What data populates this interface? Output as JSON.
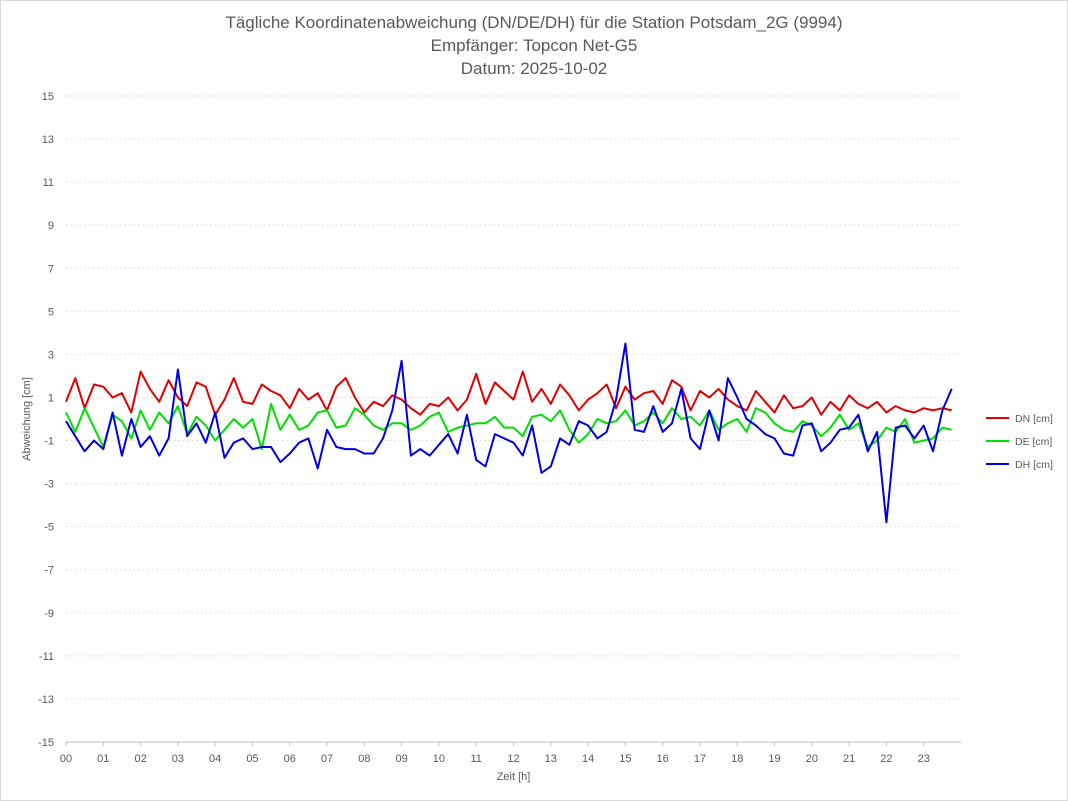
{
  "chart_data": {
    "type": "line",
    "title_lines": [
      "Tägliche Koordinatenabweichung (DN/DE/DH) für die Station Potsdam_2G (9994)",
      "Empfänger: Topcon Net-G5",
      "Datum: 2025-10-02"
    ],
    "xlabel": "Zeit [h]",
    "ylabel": "Abweichung [cm]",
    "xlim": [
      0,
      24
    ],
    "ylim": [
      -15,
      15
    ],
    "x_ticks": [
      0,
      1,
      2,
      3,
      4,
      5,
      6,
      7,
      8,
      9,
      10,
      11,
      12,
      13,
      14,
      15,
      16,
      17,
      18,
      19,
      20,
      21,
      22,
      23
    ],
    "x_tick_labels": [
      "00",
      "01",
      "02",
      "03",
      "04",
      "05",
      "06",
      "07",
      "08",
      "09",
      "10",
      "11",
      "12",
      "13",
      "14",
      "15",
      "16",
      "17",
      "18",
      "19",
      "20",
      "21",
      "22",
      "23"
    ],
    "y_ticks": [
      15,
      13,
      11,
      9,
      7,
      5,
      3,
      1,
      -1,
      -3,
      -5,
      -7,
      -9,
      -11,
      -13,
      -15
    ],
    "y_tick_labels": [
      "15",
      "13",
      "11",
      "9",
      "7",
      "5",
      "3",
      "1",
      "-1",
      "-3",
      "-5",
      "-7",
      "-9",
      "-11",
      "-13",
      "-15"
    ],
    "grid": "horizontal dotted",
    "legend_position": "right",
    "x_step_hours": 0.25,
    "series": [
      {
        "name": "DN [cm]",
        "color": "#e00000",
        "values": [
          0.8,
          1.9,
          0.5,
          1.6,
          1.5,
          1.0,
          1.2,
          0.3,
          2.2,
          1.4,
          0.8,
          1.8,
          1.0,
          0.6,
          1.7,
          1.5,
          0.2,
          0.9,
          1.9,
          0.8,
          0.7,
          1.6,
          1.3,
          1.1,
          0.5,
          1.4,
          0.9,
          1.2,
          0.4,
          1.5,
          1.9,
          1.0,
          0.3,
          0.8,
          0.6,
          1.1,
          0.9,
          0.5,
          0.2,
          0.7,
          0.6,
          1.0,
          0.4,
          0.9,
          2.1,
          0.7,
          1.7,
          1.3,
          0.9,
          2.2,
          0.8,
          1.4,
          0.7,
          1.6,
          1.1,
          0.4,
          0.9,
          1.2,
          1.6,
          0.5,
          1.5,
          0.9,
          1.2,
          1.3,
          0.7,
          1.8,
          1.5,
          0.4,
          1.3,
          1.0,
          1.4,
          0.9,
          0.6,
          0.4,
          1.3,
          0.8,
          0.3,
          1.1,
          0.5,
          0.6,
          1.0,
          0.2,
          0.8,
          0.4,
          1.1,
          0.7,
          0.5,
          0.8,
          0.3,
          0.6,
          0.4,
          0.3,
          0.5,
          0.4,
          0.5,
          0.4
        ],
        "x_step_hours": 0.25
      },
      {
        "name": "DE [cm]",
        "color": "#00e000",
        "values": [
          0.3,
          -0.6,
          0.5,
          -0.4,
          -1.3,
          0.2,
          -0.1,
          -0.9,
          0.4,
          -0.5,
          0.3,
          -0.2,
          0.6,
          -0.7,
          0.1,
          -0.3,
          -1.0,
          -0.5,
          0.0,
          -0.4,
          0.0,
          -1.4,
          0.7,
          -0.5,
          0.2,
          -0.5,
          -0.3,
          0.3,
          0.4,
          -0.4,
          -0.3,
          0.5,
          0.2,
          -0.3,
          -0.5,
          -0.2,
          -0.2,
          -0.5,
          -0.3,
          0.1,
          0.3,
          -0.6,
          -0.4,
          -0.3,
          -0.2,
          -0.2,
          0.1,
          -0.4,
          -0.4,
          -0.8,
          0.1,
          0.2,
          -0.1,
          0.4,
          -0.5,
          -1.1,
          -0.7,
          0.0,
          -0.2,
          -0.1,
          0.4,
          -0.3,
          -0.1,
          0.3,
          -0.2,
          0.5,
          0.0,
          0.1,
          -0.3,
          0.4,
          -0.5,
          -0.2,
          0.0,
          -0.6,
          0.5,
          0.3,
          -0.2,
          -0.5,
          -0.6,
          -0.1,
          -0.3,
          -0.8,
          -0.4,
          0.2,
          -0.5,
          -0.2,
          -1.3,
          -1.0,
          -0.4,
          -0.6,
          0.0,
          -1.1,
          -1.0,
          -0.9,
          -0.4,
          -0.5
        ],
        "x_step_hours": 0.25
      },
      {
        "name": "DH [cm]",
        "color": "#0000e0",
        "values": [
          -0.1,
          -0.8,
          -1.5,
          -1.0,
          -1.4,
          0.3,
          -1.7,
          0.0,
          -1.3,
          -0.8,
          -1.7,
          -0.9,
          2.3,
          -0.8,
          -0.2,
          -1.1,
          0.3,
          -1.8,
          -1.1,
          -0.9,
          -1.4,
          -1.3,
          -1.3,
          -2.0,
          -1.6,
          -1.1,
          -0.9,
          -2.3,
          -0.5,
          -1.3,
          -1.4,
          -1.4,
          -1.6,
          -1.6,
          -0.9,
          0.4,
          2.7,
          -1.7,
          -1.4,
          -1.7,
          -1.2,
          -0.7,
          -1.6,
          0.2,
          -1.9,
          -2.2,
          -0.7,
          -0.9,
          -1.1,
          -1.7,
          -0.3,
          -2.5,
          -2.2,
          -0.9,
          -1.2,
          -0.1,
          -0.3,
          -0.9,
          -0.6,
          0.9,
          3.5,
          -0.5,
          -0.6,
          0.6,
          -0.6,
          -0.2,
          1.4,
          -0.9,
          -1.4,
          0.4,
          -1.0,
          1.9,
          1.0,
          0.0,
          -0.3,
          -0.7,
          -0.9,
          -1.6,
          -1.7,
          -0.3,
          -0.2,
          -1.5,
          -1.1,
          -0.5,
          -0.4,
          0.2,
          -1.5,
          -0.6,
          -4.8,
          -0.4,
          -0.3,
          -0.9,
          -0.3,
          -1.5,
          0.4,
          1.4
        ],
        "x_step_hours": 0.25
      }
    ]
  }
}
